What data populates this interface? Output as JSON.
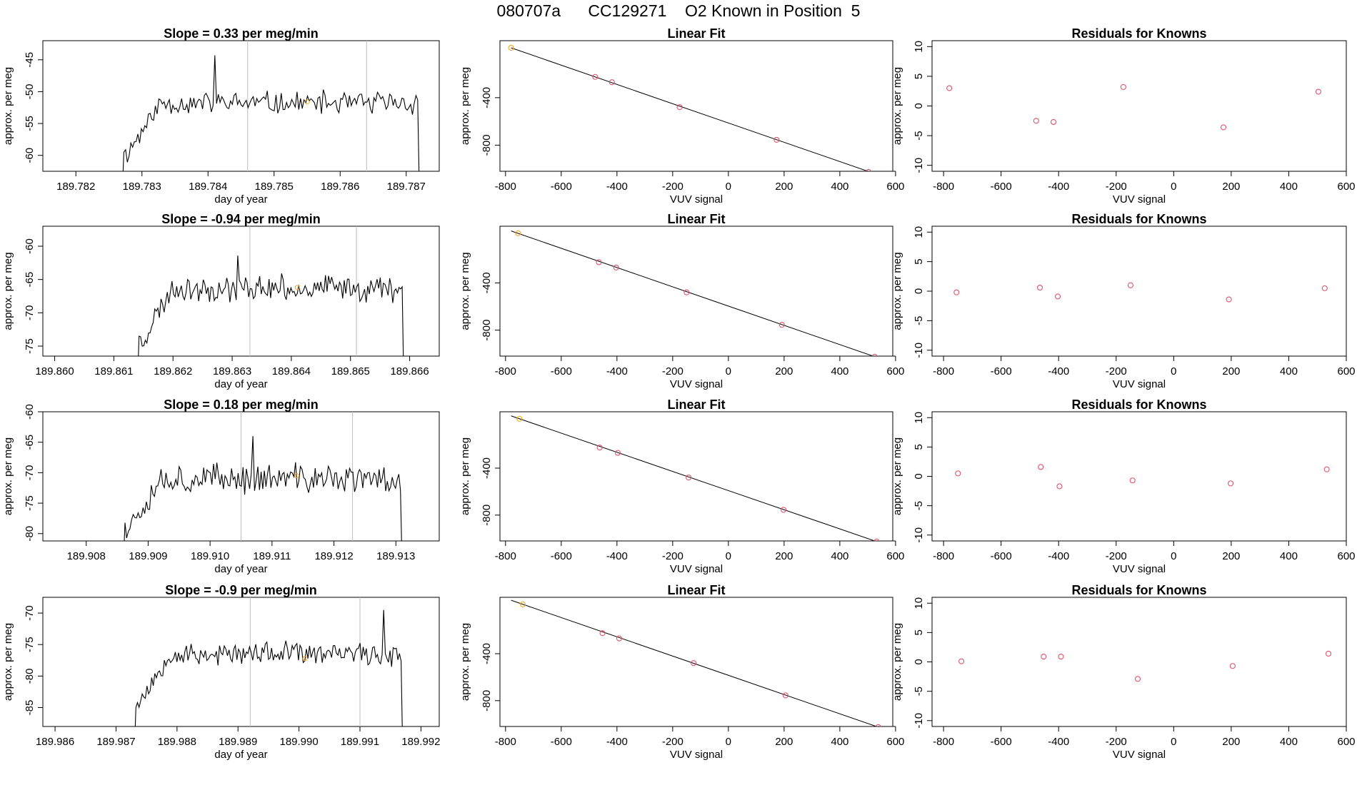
{
  "page": {
    "title": "080707a      CC129271    O2 Known in Position  5"
  },
  "colors": {
    "line": "#000000",
    "marker_red": "#df536b",
    "marker_orange": "#f5a623",
    "vline": "#bebebe"
  },
  "chart_data": [
    {
      "type": "line",
      "panel": "timeseries",
      "row": 1,
      "title": "Slope =  0.33  per meg/min",
      "xlabel": "day of year",
      "ylabel": "approx. per meg",
      "xlim": [
        189.7815,
        189.7875
      ],
      "ylim": [
        -62.5,
        -42
      ],
      "xticks": [
        "189.782",
        "189.783",
        "189.784",
        "189.785",
        "189.786",
        "189.787"
      ],
      "xtick_values": [
        189.782,
        189.783,
        189.784,
        189.785,
        189.786,
        189.787
      ],
      "yticks": [
        -60,
        -55,
        -50,
        -45
      ],
      "vlines": [
        189.7846,
        189.7864
      ],
      "x_start": 189.7827,
      "x_end": 189.7872,
      "seed": 11,
      "center": -51.8,
      "noise": 1.7,
      "spike_x": 189.7841,
      "spike_y": -44.3,
      "marker": {
        "x": 189.7855,
        "y": -51.6
      }
    },
    {
      "type": "line",
      "panel": "timeseries",
      "row": 2,
      "title": "Slope =  -0.94  per meg/min",
      "xlabel": "day of year",
      "ylabel": "approx. per meg",
      "xlim": [
        189.8598,
        189.8665
      ],
      "ylim": [
        -76.5,
        -57
      ],
      "xticks": [
        "189.860",
        "189.861",
        "189.862",
        "189.863",
        "189.864",
        "189.865",
        "189.866"
      ],
      "xtick_values": [
        189.86,
        189.861,
        189.862,
        189.863,
        189.864,
        189.865,
        189.866
      ],
      "yticks": [
        -75,
        -70,
        -65,
        -60
      ],
      "vlines": [
        189.8633,
        189.8651
      ],
      "x_start": 189.8614,
      "x_end": 189.8659,
      "seed": 23,
      "center": -66.3,
      "noise": 1.8,
      "spike_x": 189.8631,
      "spike_y": -61.4,
      "marker": {
        "x": 189.8641,
        "y": -66.2
      }
    },
    {
      "type": "line",
      "panel": "timeseries",
      "row": 3,
      "title": "Slope =  0.18  per meg/min",
      "xlabel": "day of year",
      "ylabel": "approx. per meg",
      "xlim": [
        189.9073,
        189.9137
      ],
      "ylim": [
        -81.2,
        -60
      ],
      "xticks": [
        "189.908",
        "189.909",
        "189.910",
        "189.911",
        "189.912",
        "189.913"
      ],
      "xtick_values": [
        189.908,
        189.909,
        189.91,
        189.911,
        189.912,
        189.913
      ],
      "yticks": [
        -80,
        -75,
        -70,
        -65,
        -60
      ],
      "vlines": [
        189.9105,
        189.9123
      ],
      "x_start": 189.9086,
      "x_end": 189.9131,
      "seed": 37,
      "center": -71.0,
      "noise": 2.3,
      "spike_x": 189.9107,
      "spike_y": -64.0,
      "marker": {
        "x": 189.9114,
        "y": -70.5
      }
    },
    {
      "type": "line",
      "panel": "timeseries",
      "row": 4,
      "title": "Slope =  -0.9  per meg/min",
      "xlabel": "day of year",
      "ylabel": "approx. per meg",
      "xlim": [
        189.9858,
        189.9923
      ],
      "ylim": [
        -88,
        -67.5
      ],
      "xticks": [
        "189.986",
        "189.987",
        "189.988",
        "189.989",
        "189.990",
        "189.991",
        "189.992"
      ],
      "xtick_values": [
        189.986,
        189.987,
        189.988,
        189.989,
        189.99,
        189.991,
        189.992
      ],
      "yticks": [
        -85,
        -80,
        -75,
        -70
      ],
      "vlines": [
        189.9892,
        189.991
      ],
      "x_start": 189.9873,
      "x_end": 189.9917,
      "seed": 53,
      "center": -76.5,
      "noise": 1.7,
      "spike_x": 189.9914,
      "spike_y": -69.5,
      "marker": {
        "x": 189.9901,
        "y": -77.2
      }
    },
    {
      "type": "scatter",
      "panel": "linearfit",
      "row": 1,
      "title": "Linear Fit",
      "xlabel": "VUV signal",
      "ylabel": "approx. per meg",
      "xlim": [
        -820,
        590
      ],
      "ylim": [
        -1020,
        80
      ],
      "xticks": [
        -800,
        -600,
        -400,
        -200,
        0,
        200,
        400,
        600
      ],
      "yticks": [
        -400,
        -800
      ],
      "x": [
        -780,
        -478,
        -418,
        -175,
        173,
        503
      ],
      "y": [
        20,
        -225,
        -270,
        -480,
        -755,
        -1025
      ],
      "fit_line": {
        "x": [
          -780,
          550
        ],
        "y": [
          20,
          -1060
        ]
      },
      "first_point_orange": true
    },
    {
      "type": "scatter",
      "panel": "linearfit",
      "row": 2,
      "title": "Linear Fit",
      "xlabel": "VUV signal",
      "ylabel": "approx. per meg",
      "xlim": [
        -820,
        590
      ],
      "ylim": [
        -1020,
        80
      ],
      "xticks": [
        -800,
        -600,
        -400,
        -200,
        0,
        200,
        400,
        600
      ],
      "yticks": [
        -400,
        -800
      ],
      "x": [
        -755,
        -465,
        -403,
        -150,
        192,
        525
      ],
      "y": [
        20,
        -225,
        -270,
        -480,
        -755,
        -1025
      ],
      "fit_line": {
        "x": [
          -780,
          550
        ],
        "y": [
          40,
          -1045
        ]
      },
      "first_point_orange": true
    },
    {
      "type": "scatter",
      "panel": "linearfit",
      "row": 3,
      "title": "Linear Fit",
      "xlabel": "VUV signal",
      "ylabel": "approx. per meg",
      "xlim": [
        -820,
        590
      ],
      "ylim": [
        -1020,
        80
      ],
      "xticks": [
        -800,
        -600,
        -400,
        -200,
        0,
        200,
        400,
        600
      ],
      "yticks": [
        -400,
        -800
      ],
      "x": [
        -750,
        -462,
        -397,
        -143,
        198,
        532
      ],
      "y": [
        20,
        -225,
        -270,
        -480,
        -755,
        -1025
      ],
      "fit_line": {
        "x": [
          -780,
          550
        ],
        "y": [
          45,
          -1040
        ]
      },
      "first_point_orange": true
    },
    {
      "type": "scatter",
      "panel": "linearfit",
      "row": 4,
      "title": "Linear Fit",
      "xlabel": "VUV signal",
      "ylabel": "approx. per meg",
      "xlim": [
        -820,
        590
      ],
      "ylim": [
        -1020,
        80
      ],
      "xticks": [
        -800,
        -600,
        -400,
        -200,
        0,
        200,
        400,
        600
      ],
      "yticks": [
        -400,
        -800
      ],
      "x": [
        -738,
        -452,
        -392,
        -125,
        205,
        538
      ],
      "y": [
        20,
        -225,
        -270,
        -480,
        -755,
        -1025
      ],
      "fit_line": {
        "x": [
          -780,
          550
        ],
        "y": [
          55,
          -1035
        ]
      },
      "first_point_orange": true
    },
    {
      "type": "scatter",
      "panel": "residuals",
      "row": 1,
      "title": "Residuals for Knowns",
      "xlabel": "VUV signal",
      "ylabel": "approx. per meg",
      "xlim": [
        -840,
        600
      ],
      "ylim": [
        -11,
        11
      ],
      "xticks": [
        -800,
        -600,
        -400,
        -200,
        0,
        200,
        400,
        600
      ],
      "yticks": [
        -10,
        -5,
        0,
        5,
        10
      ],
      "x": [
        -780,
        -478,
        -418,
        -175,
        173,
        503
      ],
      "y": [
        3.0,
        -2.5,
        -2.7,
        3.2,
        -3.6,
        2.4
      ]
    },
    {
      "type": "scatter",
      "panel": "residuals",
      "row": 2,
      "title": "Residuals for Knowns",
      "xlabel": "VUV signal",
      "ylabel": "approx. per meg",
      "xlim": [
        -840,
        600
      ],
      "ylim": [
        -11,
        11
      ],
      "xticks": [
        -800,
        -600,
        -400,
        -200,
        0,
        200,
        400,
        600
      ],
      "yticks": [
        -10,
        -5,
        0,
        5,
        10
      ],
      "x": [
        -755,
        -465,
        -403,
        -150,
        192,
        525
      ],
      "y": [
        -0.2,
        0.6,
        -0.9,
        1.0,
        -1.4,
        0.5
      ]
    },
    {
      "type": "scatter",
      "panel": "residuals",
      "row": 3,
      "title": "Residuals for Knowns",
      "xlabel": "VUV signal",
      "ylabel": "approx. per meg",
      "xlim": [
        -840,
        600
      ],
      "ylim": [
        -11,
        11
      ],
      "xticks": [
        -800,
        -600,
        -400,
        -200,
        0,
        200,
        400,
        600
      ],
      "yticks": [
        -10,
        -5,
        0,
        5,
        10
      ],
      "x": [
        -750,
        -462,
        -397,
        -143,
        198,
        532
      ],
      "y": [
        0.5,
        1.6,
        -1.7,
        -0.7,
        -1.2,
        1.2
      ]
    },
    {
      "type": "scatter",
      "panel": "residuals",
      "row": 4,
      "title": "Residuals for Knowns",
      "xlabel": "VUV signal",
      "ylabel": "approx. per meg",
      "xlim": [
        -840,
        600
      ],
      "ylim": [
        -11,
        11
      ],
      "xticks": [
        -800,
        -600,
        -400,
        -200,
        0,
        200,
        400,
        600
      ],
      "yticks": [
        -10,
        -5,
        0,
        5,
        10
      ],
      "x": [
        -738,
        -452,
        -392,
        -125,
        205,
        538
      ],
      "y": [
        0.1,
        0.9,
        0.9,
        -2.9,
        -0.7,
        1.4
      ]
    }
  ]
}
